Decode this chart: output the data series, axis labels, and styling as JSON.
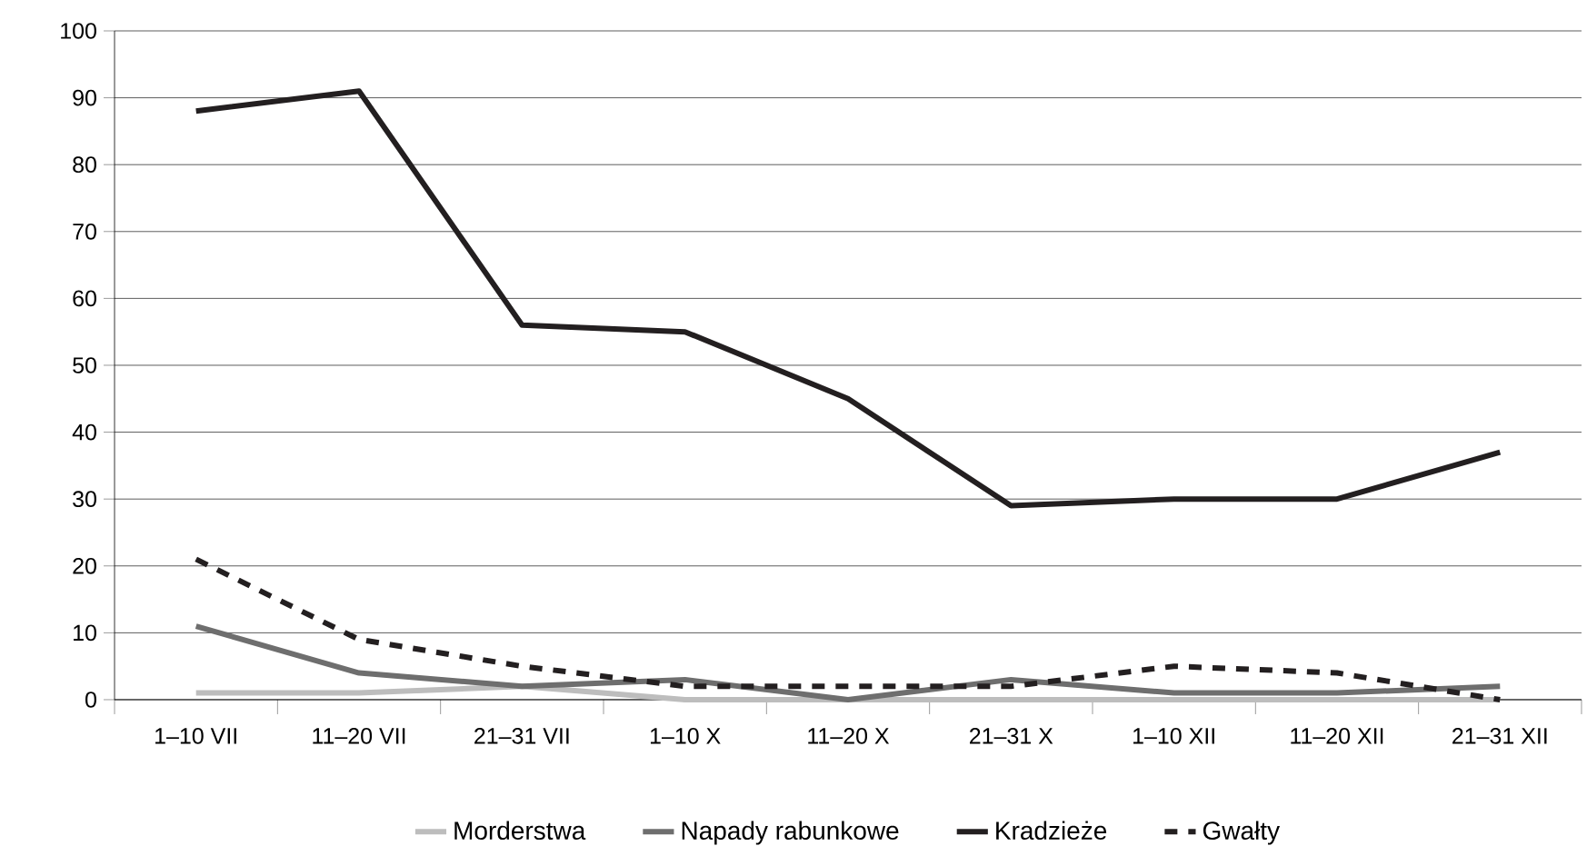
{
  "chart_data": {
    "type": "line",
    "categories": [
      "1–10 VII",
      "11–20 VII",
      "21–31 VII",
      "1–10 X",
      "11–20 X",
      "21–31 X",
      "1–10 XII",
      "11–20 XII",
      "21–31 XII"
    ],
    "series": [
      {
        "name": "Morderstwa",
        "color": "#bdbdbd",
        "values": [
          1,
          1,
          2,
          0,
          0,
          0,
          0,
          0,
          0
        ]
      },
      {
        "name": "Napady rabunkowe",
        "color": "#6e6e6e",
        "values": [
          11,
          4,
          2,
          3,
          0,
          3,
          1,
          1,
          2
        ]
      },
      {
        "name": "Kradzieże",
        "color": "#231f20",
        "values": [
          88,
          91,
          56,
          55,
          45,
          29,
          30,
          30,
          37
        ]
      },
      {
        "name": "Gwałty",
        "color": "#231f20",
        "line_style": "dashed",
        "values": [
          21,
          9,
          5,
          2,
          2,
          2,
          5,
          4,
          0
        ]
      }
    ],
    "ylim": [
      0,
      100
    ],
    "yticks": [
      0,
      10,
      20,
      30,
      40,
      50,
      60,
      70,
      80,
      90,
      100
    ],
    "grid": "y",
    "legend": "bottom",
    "marker": "none"
  }
}
